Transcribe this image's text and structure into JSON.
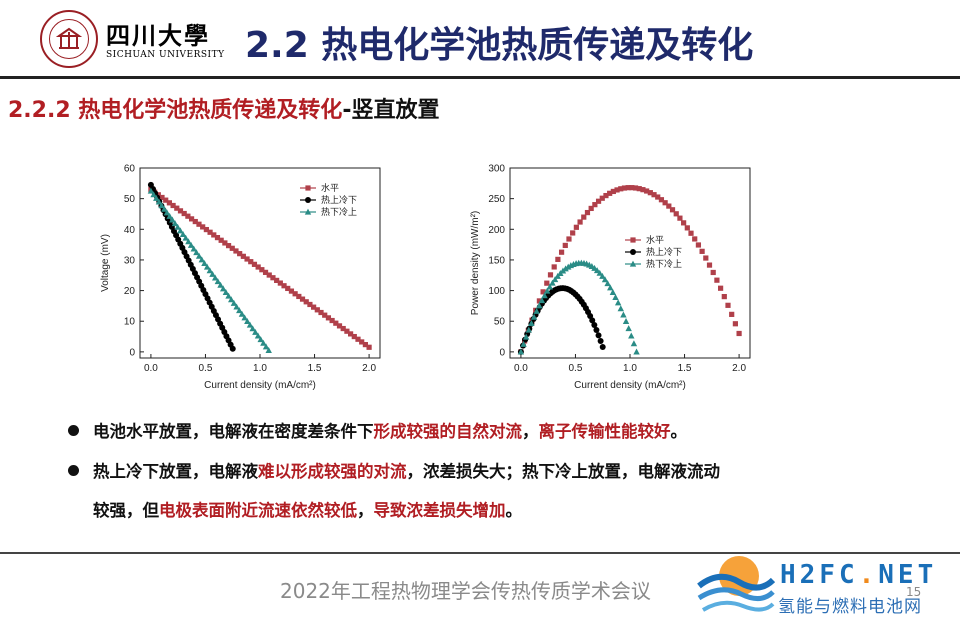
{
  "logo": {
    "name_cn": "四川大學",
    "name_en": "SICHUAN UNIVERSITY",
    "seal_text": "SICHUAN UNIVERSITY 四川大学"
  },
  "slide_title": "2.2 热电化学池热质传递及转化",
  "subtitle": {
    "red": "2.2.2 热电化学池热质传递及转化",
    "black": "-竖直放置"
  },
  "colors": {
    "red": "#b11e23",
    "navy": "#1f2a6b",
    "maroon": "#b0404a",
    "teal": "#2a8c86",
    "black": "#000000"
  },
  "chart_data": [
    {
      "type": "scatter",
      "xlabel": "Current density (mA/cm²)",
      "ylabel": "Voltage (mV)",
      "xlim": [
        -0.1,
        2.1
      ],
      "ylim": [
        -2,
        60
      ],
      "xticks": [
        "0.0",
        "0.5",
        "1.0",
        "1.5",
        "2.0"
      ],
      "yticks": [
        "0",
        "10",
        "20",
        "30",
        "40",
        "50",
        "60"
      ],
      "legend_position": "top-right",
      "series": [
        {
          "name": "水平",
          "marker": "square",
          "color": "#b0404a",
          "x": [
            0.0,
            2.0
          ],
          "y": [
            53.0,
            1.5
          ],
          "npoints": 60
        },
        {
          "name": "热上冷下",
          "marker": "circle",
          "color": "#000000",
          "x": [
            0.0,
            0.75
          ],
          "y": [
            54.5,
            1.0
          ],
          "npoints": 40
        },
        {
          "name": "热下冷上",
          "marker": "triangle",
          "color": "#2a8c86",
          "x": [
            0.0,
            1.08
          ],
          "y": [
            52.5,
            0.5
          ],
          "npoints": 45
        }
      ]
    },
    {
      "type": "scatter",
      "xlabel": "Current density (mA/cm²)",
      "ylabel": "Power density (mW/m²)",
      "xlim": [
        -0.1,
        2.1
      ],
      "ylim": [
        -10,
        300
      ],
      "xticks": [
        "0.0",
        "0.5",
        "1.0",
        "1.5",
        "2.0"
      ],
      "yticks": [
        "0",
        "50",
        "100",
        "150",
        "200",
        "250",
        "300"
      ],
      "legend_position": "center-right",
      "series": [
        {
          "name": "水平",
          "marker": "square",
          "color": "#b0404a",
          "xmax": 2.0,
          "peak_x": 1.0,
          "peak_y": 268,
          "end_y": 30,
          "npoints": 60
        },
        {
          "name": "热上冷下",
          "marker": "circle",
          "color": "#000000",
          "xmax": 0.75,
          "peak_x": 0.38,
          "peak_y": 104,
          "end_y": 8,
          "npoints": 40
        },
        {
          "name": "热下冷上",
          "marker": "triangle",
          "color": "#2a8c86",
          "xmax": 1.06,
          "peak_x": 0.55,
          "peak_y": 145,
          "end_y": 0,
          "npoints": 45
        }
      ]
    }
  ],
  "bullets": [
    {
      "lines": [
        [
          {
            "t": "电池水平放置，电解液在密度差条件下",
            "red": false
          },
          {
            "t": "形成较强的自然对流",
            "red": true
          },
          {
            "t": "，",
            "red": false
          },
          {
            "t": "离子传输性能较好",
            "red": true
          },
          {
            "t": "。",
            "red": false
          }
        ]
      ]
    },
    {
      "lines": [
        [
          {
            "t": "热上冷下放置，电解液",
            "red": false
          },
          {
            "t": "难以形成较强的对流",
            "red": true
          },
          {
            "t": "，浓差损失大；热下冷上放置，电解液流动",
            "red": false
          }
        ],
        [
          {
            "t": "较强，但",
            "red": false
          },
          {
            "t": "电极表面附近流速依然较低",
            "red": true
          },
          {
            "t": "，",
            "red": false
          },
          {
            "t": "导致浓差损失增加",
            "red": true
          },
          {
            "t": "。",
            "red": false
          }
        ]
      ]
    }
  ],
  "footer": {
    "text": "2022年工程热物理学会传热传质学术会议",
    "page": "15"
  },
  "watermark": {
    "brand_main": "H2FC",
    "brand_dot": ".",
    "brand_tld": "NET",
    "tagline": "氢能与燃料电池网"
  }
}
